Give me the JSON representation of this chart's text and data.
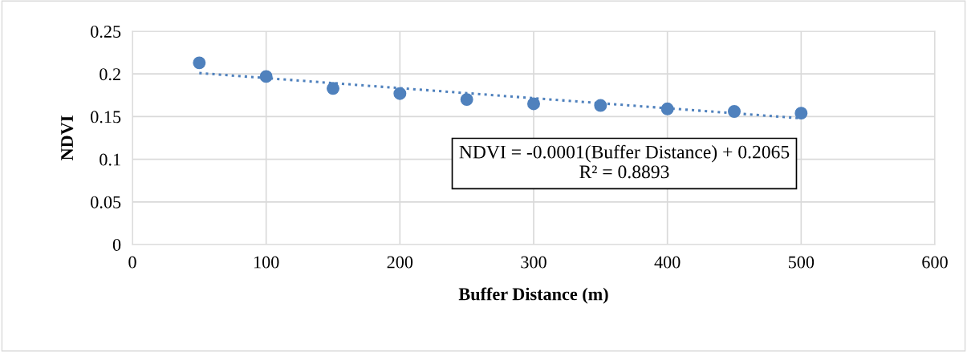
{
  "chart_data": {
    "type": "scatter",
    "xlabel": "Buffer Distance (m)",
    "ylabel": "NDVI",
    "x": [
      50,
      100,
      150,
      200,
      250,
      300,
      350,
      400,
      450,
      500
    ],
    "series": [
      {
        "color": "#4f81bd",
        "marker": "circle",
        "values": [
          0.213,
          0.197,
          0.183,
          0.177,
          0.17,
          0.165,
          0.163,
          0.159,
          0.156,
          0.154
        ]
      },
      {
        "type": "line",
        "color": "#4f81bd",
        "line_style": "dotted",
        "x": [
          50,
          500
        ],
        "values": [
          0.201,
          0.148
        ]
      }
    ],
    "annotations": [
      "NDVI = -0.0001(Buffer Distance) + 0.2065\nR² = 0.8893"
    ],
    "xlim": [
      0,
      600
    ],
    "xticks": [
      0,
      100,
      200,
      300,
      400,
      500,
      600
    ],
    "ylim": [
      0,
      0.25
    ],
    "yticks": [
      {
        "value": 0,
        "label": "0"
      },
      0.05,
      {
        "value": 0.1,
        "label": "0.1"
      },
      0.15,
      {
        "value": 0.2,
        "label": "0.2"
      },
      0.25
    ],
    "grid": true,
    "legend": false
  }
}
